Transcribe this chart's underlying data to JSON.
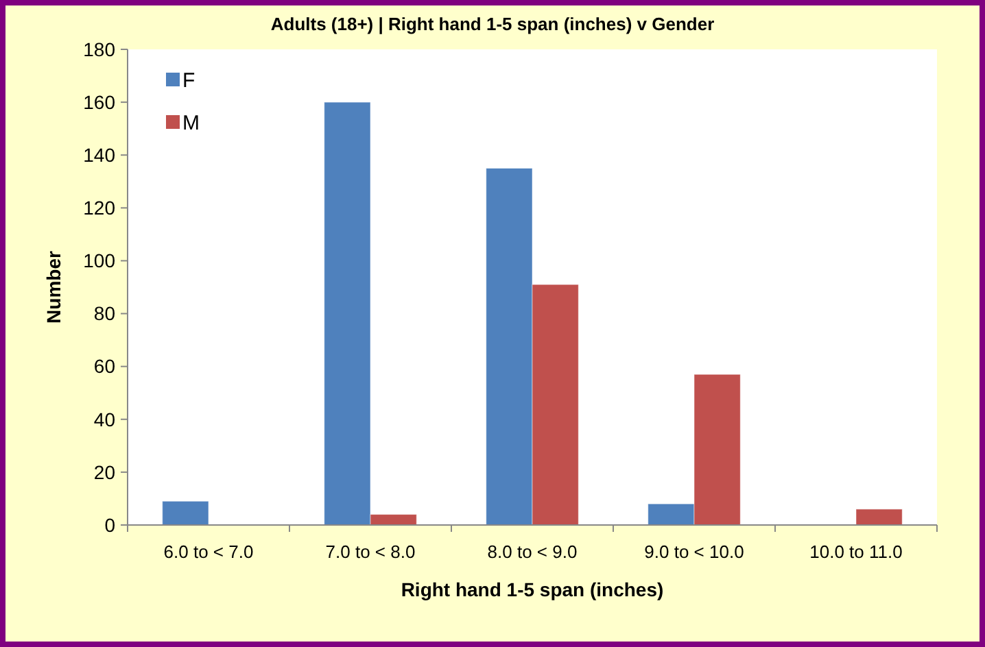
{
  "chart_data": {
    "type": "bar",
    "title": "Adults (18+) | Right hand 1-5 span (inches) v Gender",
    "xlabel": "Right hand 1-5 span (inches)",
    "ylabel": "Number",
    "categories": [
      "6.0 to < 7.0",
      "7.0 to < 8.0",
      "8.0 to < 9.0",
      "9.0 to < 10.0",
      "10.0 to 11.0"
    ],
    "series": [
      {
        "name": "F",
        "color": "#4f81bd",
        "values": [
          9,
          160,
          135,
          8,
          0
        ]
      },
      {
        "name": "M",
        "color": "#c0504d",
        "values": [
          0,
          4,
          91,
          57,
          6
        ]
      }
    ],
    "ylim": [
      0,
      180
    ],
    "yticks": [
      0,
      20,
      40,
      60,
      80,
      100,
      120,
      140,
      160,
      180
    ],
    "grid": false,
    "legend": "top left"
  }
}
